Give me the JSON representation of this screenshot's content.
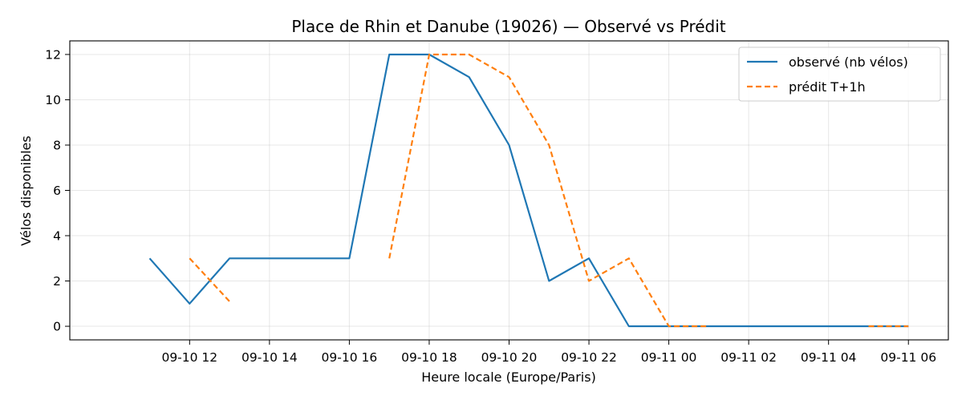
{
  "chart_data": {
    "type": "line",
    "title": "Place de Rhin et Danube (19026) — Observé vs Prédit",
    "xlabel": "Heure locale (Europe/Paris)",
    "ylabel": "Vélos disponibles",
    "x_ticks": [
      {
        "h": 12,
        "label": "09-10 12"
      },
      {
        "h": 14,
        "label": "09-10 14"
      },
      {
        "h": 16,
        "label": "09-10 16"
      },
      {
        "h": 18,
        "label": "09-10 18"
      },
      {
        "h": 20,
        "label": "09-10 20"
      },
      {
        "h": 22,
        "label": "09-10 22"
      },
      {
        "h": 24,
        "label": "09-11 00"
      },
      {
        "h": 26,
        "label": "09-11 02"
      },
      {
        "h": 28,
        "label": "09-11 04"
      },
      {
        "h": 30,
        "label": "09-11 06"
      }
    ],
    "xlim_hours": [
      9.0,
      31.0
    ],
    "ylim": [
      -0.6,
      12.6
    ],
    "y_ticks": [
      0,
      2,
      4,
      6,
      8,
      10,
      12
    ],
    "grid": true,
    "legend_position": "top-right",
    "series": [
      {
        "name": "observé (nb vélos)",
        "color": "#1f77b4",
        "dash": "solid",
        "points": [
          {
            "h": 11,
            "y": 3
          },
          {
            "h": 12,
            "y": 1
          },
          {
            "h": 13,
            "y": 3
          },
          {
            "h": 14,
            "y": 3
          },
          {
            "h": 15,
            "y": 3
          },
          {
            "h": 16,
            "y": 3
          },
          {
            "h": 17,
            "y": 12
          },
          {
            "h": 18,
            "y": 12
          },
          {
            "h": 19,
            "y": 11
          },
          {
            "h": 20,
            "y": 8
          },
          {
            "h": 21,
            "y": 2
          },
          {
            "h": 22,
            "y": 3
          },
          {
            "h": 23,
            "y": 0
          },
          {
            "h": 24,
            "y": 0
          },
          {
            "h": 25,
            "y": 0
          },
          {
            "h": 26,
            "y": 0
          },
          {
            "h": 27,
            "y": 0
          },
          {
            "h": 28,
            "y": 0
          },
          {
            "h": 29,
            "y": 0
          },
          {
            "h": 30,
            "y": 0
          }
        ]
      },
      {
        "name": "prédit T+1h",
        "color": "#ff7f0e",
        "dash": "dashed",
        "segments": [
          [
            {
              "h": 12,
              "y": 3
            },
            {
              "h": 13,
              "y": 1.1
            }
          ],
          [
            {
              "h": 17,
              "y": 3
            },
            {
              "h": 18,
              "y": 12
            },
            {
              "h": 19,
              "y": 12
            },
            {
              "h": 20,
              "y": 11
            },
            {
              "h": 21,
              "y": 8
            },
            {
              "h": 22,
              "y": 2
            },
            {
              "h": 23,
              "y": 3
            },
            {
              "h": 24,
              "y": 0
            },
            {
              "h": 25,
              "y": 0
            }
          ],
          [
            {
              "h": 29,
              "y": 0
            },
            {
              "h": 30,
              "y": 0
            }
          ]
        ]
      }
    ]
  }
}
